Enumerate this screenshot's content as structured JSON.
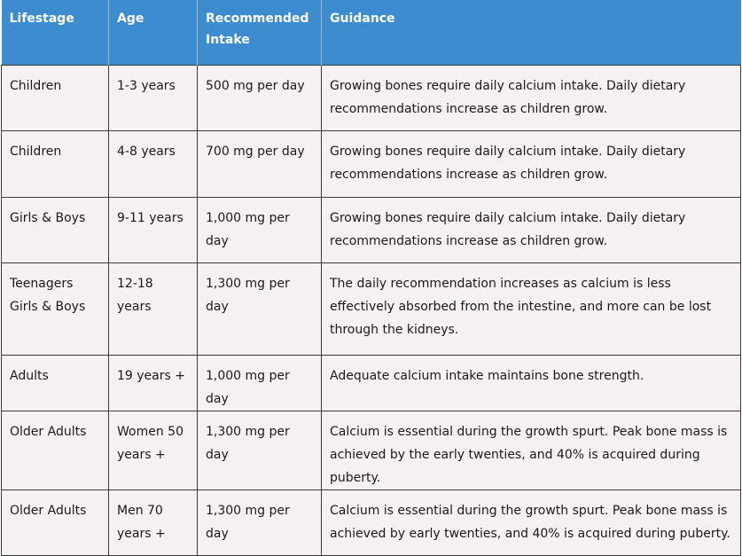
{
  "table": {
    "headers": [
      "Lifestage",
      "Age",
      "Recommended Intake",
      "Guidance"
    ],
    "rows": [
      {
        "lifestage": "Children",
        "age": "1-3 years",
        "intake": "500 mg per day",
        "guidance": "Growing bones require daily calcium intake. Daily dietary recommendations increase as children grow."
      },
      {
        "lifestage": "Children",
        "age": "4-8 years",
        "intake": "700 mg per day",
        "guidance": "Growing bones require daily calcium intake. Daily dietary recommendations increase as children grow."
      },
      {
        "lifestage": "Girls & Boys",
        "age": "9-11 years",
        "intake": "1,000 mg per day",
        "guidance": "Growing bones require daily calcium intake. Daily dietary recommendations increase as children grow."
      },
      {
        "lifestage": "Teenagers Girls & Boys",
        "age": "12-18 years",
        "intake": "1,300 mg per day",
        "guidance": "The daily recommendation increases as calcium is less effectively absorbed from the intestine, and more can be lost through the kidneys."
      },
      {
        "lifestage": "Adults",
        "age": "19 years +",
        "intake": "1,000 mg per day",
        "guidance": "Adequate calcium intake maintains bone strength."
      },
      {
        "lifestage": "Older Adults",
        "age": "Women 50 years +",
        "intake": "1,300 mg per day",
        "guidance": "Calcium is essential during the growth spurt. Peak bone mass is achieved by the early twenties, and 40% is acquired during puberty."
      },
      {
        "lifestage": "Older Adults",
        "age": "Men 70 years +",
        "intake": "1,300 mg per day",
        "guidance": "Calcium is essential during the growth spurt. Peak bone mass is achieved by early twenties, and 40% is acquired during puberty."
      }
    ]
  },
  "colors": {
    "header_bg": "#3c8ccf",
    "header_text": "#ffffff",
    "row_bg": "#f5f0f3",
    "border": "#3a3a3a"
  }
}
